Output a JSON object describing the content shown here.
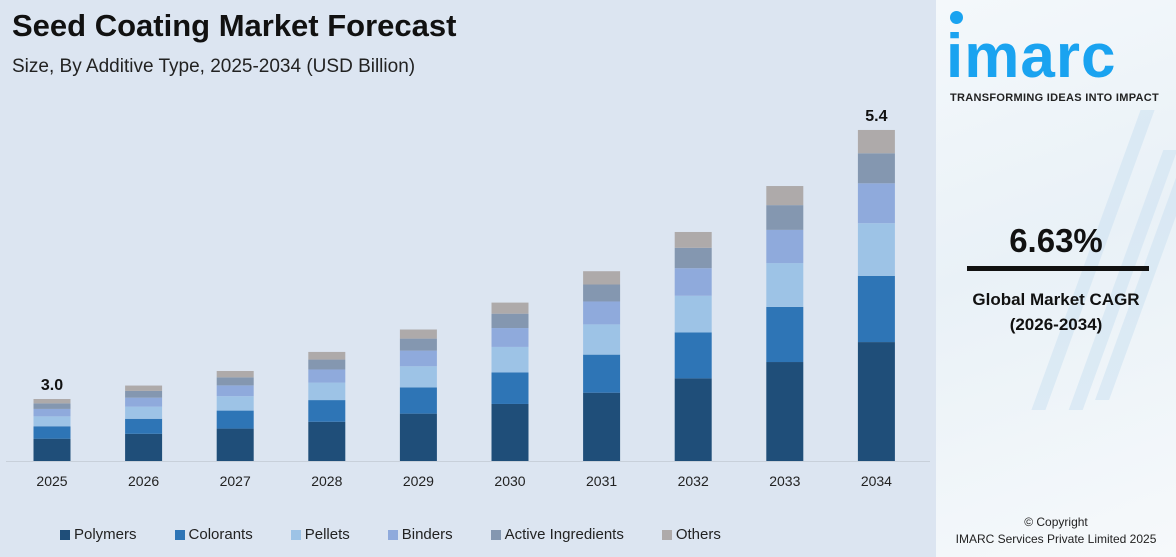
{
  "header": {
    "title": "Seed Coating Market Forecast",
    "subtitle": "Size, By Additive Type, 2025-2034 (USD Billion)"
  },
  "chart_data": {
    "type": "bar",
    "stacked": true,
    "title": "Seed Coating Market Forecast",
    "subtitle": "Size, By Additive Type, 2025-2034 (USD Billion)",
    "categories": [
      "2025",
      "2026",
      "2027",
      "2028",
      "2029",
      "2030",
      "2031",
      "2032",
      "2033",
      "2034"
    ],
    "totals": [
      3.0,
      3.12,
      3.25,
      3.42,
      3.62,
      3.86,
      4.14,
      4.49,
      4.9,
      5.4
    ],
    "total_labels": {
      "2025": "3.0",
      "2034": "5.4"
    },
    "series": [
      {
        "name": "Polymers",
        "color": "#1f4e79",
        "values": [
          1.08,
          1.12,
          1.17,
          1.23,
          1.3,
          1.39,
          1.49,
          1.62,
          1.76,
          1.94
        ]
      },
      {
        "name": "Colorants",
        "color": "#2e75b6",
        "values": [
          0.6,
          0.62,
          0.65,
          0.68,
          0.72,
          0.77,
          0.83,
          0.9,
          0.98,
          1.08
        ]
      },
      {
        "name": "Pellets",
        "color": "#9dc3e6",
        "values": [
          0.48,
          0.5,
          0.52,
          0.55,
          0.58,
          0.62,
          0.66,
          0.72,
          0.78,
          0.86
        ]
      },
      {
        "name": "Binders",
        "color": "#8faadc",
        "values": [
          0.36,
          0.37,
          0.39,
          0.41,
          0.43,
          0.46,
          0.5,
          0.54,
          0.59,
          0.65
        ]
      },
      {
        "name": "Active Ingredients",
        "color": "#8497b0",
        "values": [
          0.27,
          0.28,
          0.29,
          0.31,
          0.33,
          0.35,
          0.37,
          0.4,
          0.44,
          0.49
        ]
      },
      {
        "name": "Others",
        "color": "#aeaaaa",
        "values": [
          0.21,
          0.22,
          0.23,
          0.24,
          0.25,
          0.27,
          0.29,
          0.31,
          0.34,
          0.38
        ]
      }
    ],
    "legend": "bottom",
    "grid": false
  },
  "sidebar": {
    "logo": "imarc",
    "tagline": "TRANSFORMING IDEAS INTO IMPACT",
    "cagr_value": "6.63%",
    "cagr_label": "Global Market CAGR",
    "cagr_period": "(2026-2034)",
    "copyright": "© Copyright",
    "company": "IMARC Services Private Limited 2025",
    "brand_color": "#1aa3f0"
  }
}
